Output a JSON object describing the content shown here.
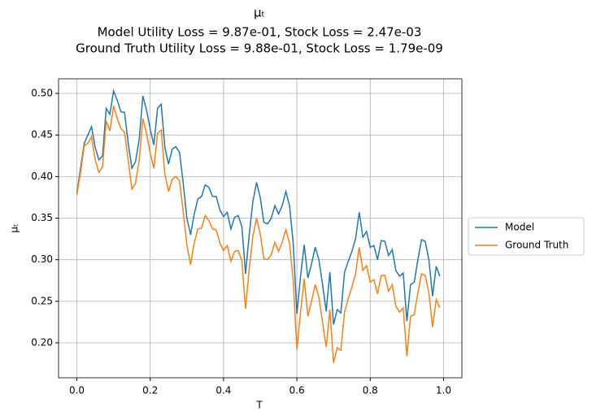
{
  "chart_data": {
    "type": "line",
    "title": [
      "μₜ",
      "Model Utility Loss = 9.87e-01, Stock Loss = 2.47e-03",
      "Ground Truth Utility Loss = 9.88e-01, Stock Loss = 1.79e-09"
    ],
    "xlabel": "T",
    "ylabel": "μₜ",
    "x": [
      0,
      0.01,
      0.02,
      0.03,
      0.04,
      0.05,
      0.06,
      0.07,
      0.08,
      0.09,
      0.1,
      0.11,
      0.12,
      0.13,
      0.14,
      0.15,
      0.16,
      0.17,
      0.18,
      0.19,
      0.2,
      0.21,
      0.22,
      0.23,
      0.24,
      0.25,
      0.26,
      0.27,
      0.28,
      0.29,
      0.3,
      0.31,
      0.32,
      0.33,
      0.34,
      0.35,
      0.36,
      0.37,
      0.38,
      0.39,
      0.4,
      0.41,
      0.42,
      0.43,
      0.44,
      0.45,
      0.46,
      0.47,
      0.48,
      0.49,
      0.5,
      0.51,
      0.52,
      0.53,
      0.54,
      0.55,
      0.56,
      0.57,
      0.58,
      0.59,
      0.6,
      0.61,
      0.62,
      0.63,
      0.64,
      0.65,
      0.66,
      0.67,
      0.68,
      0.69,
      0.7,
      0.71,
      0.72,
      0.73,
      0.74,
      0.75,
      0.76,
      0.77,
      0.78,
      0.79,
      0.8,
      0.81,
      0.82,
      0.83,
      0.84,
      0.85,
      0.86,
      0.87,
      0.88,
      0.89,
      0.9,
      0.91,
      0.92,
      0.93,
      0.94,
      0.95,
      0.96,
      0.97,
      0.98,
      0.99
    ],
    "series": [
      {
        "name": "Model",
        "color": "#1f77b4",
        "values": [
          0.38,
          0.41,
          0.44,
          0.45,
          0.46,
          0.435,
          0.42,
          0.425,
          0.482,
          0.475,
          0.503,
          0.492,
          0.478,
          0.477,
          0.44,
          0.41,
          0.418,
          0.445,
          0.497,
          0.48,
          0.457,
          0.438,
          0.482,
          0.487,
          0.435,
          0.415,
          0.433,
          0.436,
          0.429,
          0.392,
          0.35,
          0.33,
          0.355,
          0.373,
          0.376,
          0.39,
          0.387,
          0.376,
          0.376,
          0.36,
          0.352,
          0.357,
          0.337,
          0.351,
          0.353,
          0.34,
          0.283,
          0.33,
          0.37,
          0.393,
          0.375,
          0.345,
          0.343,
          0.35,
          0.365,
          0.355,
          0.365,
          0.382,
          0.365,
          0.32,
          0.235,
          0.28,
          0.318,
          0.278,
          0.295,
          0.315,
          0.3,
          0.27,
          0.238,
          0.285,
          0.222,
          0.24,
          0.236,
          0.285,
          0.298,
          0.31,
          0.325,
          0.357,
          0.327,
          0.334,
          0.315,
          0.317,
          0.3,
          0.323,
          0.322,
          0.305,
          0.312,
          0.287,
          0.28,
          0.284,
          0.226,
          0.27,
          0.273,
          0.3,
          0.324,
          0.322,
          0.3,
          0.256,
          0.292,
          0.28
        ]
      },
      {
        "name": "Ground Truth",
        "color": "#ff7f0e",
        "values": [
          0.378,
          0.405,
          0.437,
          0.44,
          0.448,
          0.42,
          0.405,
          0.412,
          0.467,
          0.455,
          0.485,
          0.47,
          0.458,
          0.453,
          0.42,
          0.385,
          0.392,
          0.42,
          0.47,
          0.452,
          0.428,
          0.41,
          0.452,
          0.456,
          0.403,
          0.382,
          0.397,
          0.4,
          0.395,
          0.358,
          0.318,
          0.294,
          0.32,
          0.337,
          0.338,
          0.353,
          0.347,
          0.337,
          0.336,
          0.32,
          0.311,
          0.317,
          0.298,
          0.31,
          0.311,
          0.299,
          0.241,
          0.289,
          0.328,
          0.35,
          0.331,
          0.301,
          0.3,
          0.306,
          0.321,
          0.31,
          0.321,
          0.336,
          0.32,
          0.275,
          0.192,
          0.237,
          0.277,
          0.232,
          0.25,
          0.27,
          0.255,
          0.225,
          0.195,
          0.24,
          0.176,
          0.194,
          0.191,
          0.237,
          0.253,
          0.267,
          0.283,
          0.315,
          0.287,
          0.293,
          0.273,
          0.276,
          0.259,
          0.281,
          0.281,
          0.262,
          0.27,
          0.244,
          0.237,
          0.242,
          0.184,
          0.232,
          0.234,
          0.26,
          0.283,
          0.281,
          0.26,
          0.219,
          0.252,
          0.242
        ]
      }
    ],
    "xlim": [
      -0.05,
      1.05
    ],
    "xticks": [
      {
        "value": 0,
        "label": "0.0"
      },
      0.2,
      0.4,
      0.6,
      0.8,
      {
        "value": 1,
        "label": "1.0"
      }
    ],
    "ylim": [
      0.158,
      0.5176
    ],
    "yticks": [
      {
        "value": 0.2,
        "label": "0.20"
      },
      0.25,
      {
        "value": 0.3,
        "label": "0.30"
      },
      0.35,
      {
        "value": 0.4,
        "label": "0.40"
      },
      0.45,
      {
        "value": 0.5,
        "label": "0.50"
      }
    ],
    "grid": true,
    "legend": "outside right"
  }
}
